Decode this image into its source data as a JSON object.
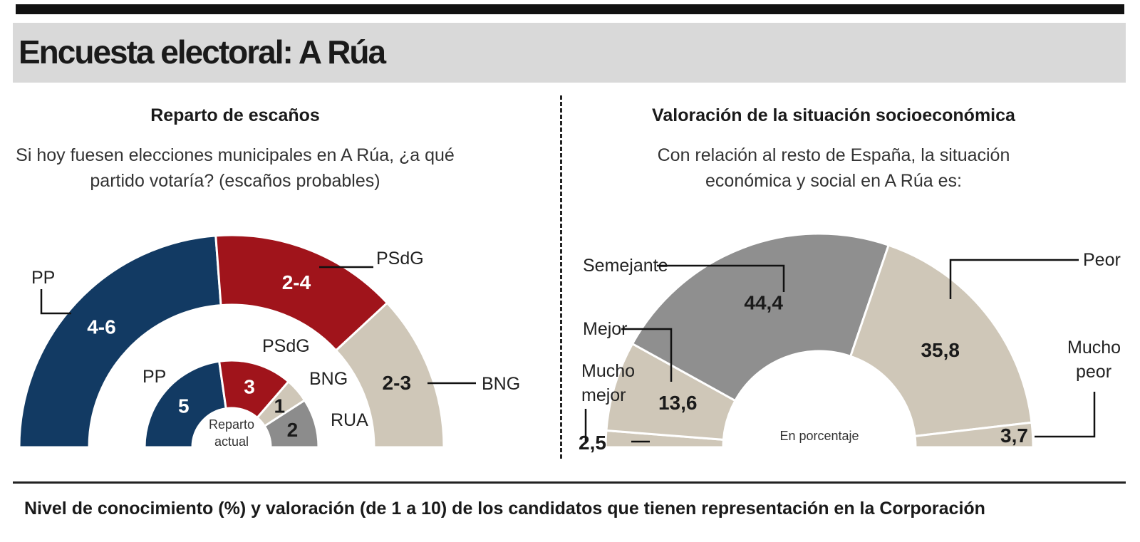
{
  "header": {
    "title": "Encuesta electoral: A Rúa"
  },
  "left_panel": {
    "title": "Reparto de escaños",
    "subtitle_line1": "Si hoy fuesen elecciones municipales en A Rúa, ¿a qué",
    "subtitle_line2": "partido votaría? (escaños probables)",
    "center_label_line1": "Reparto",
    "center_label_line2": "actual"
  },
  "right_panel": {
    "title": "Valoración de la situación socioeconómica",
    "subtitle_line1": "Con relación al resto de España, la situación",
    "subtitle_line2": "económica y social en A Rúa es:",
    "center_label": "En porcentaje"
  },
  "footer": {
    "title": "Nivel de conocimiento (%) y valoración (de 1 a 10) de los candidatos que tienen representación en la Corporación"
  },
  "colors": {
    "PP": "#123a63",
    "PSdG": "#a0141b",
    "BNG": "#cfc7b8",
    "RUA": "#8c8c8c",
    "Semejante": "#8f8f8f",
    "beige": "#cfc7b8"
  },
  "chart_data": [
    {
      "type": "pie",
      "variant": "half-donut",
      "name_hidden": true,
      "series": [
        {
          "name": "escaños probables",
          "categories": [
            "PP",
            "PSdG",
            "BNG"
          ],
          "labels": [
            "4-6",
            "2-4",
            "2-3"
          ],
          "values": [
            5,
            3,
            2.5
          ]
        },
        {
          "name": "Reparto actual",
          "categories": [
            "PP",
            "PSdG",
            "BNG",
            "RUA"
          ],
          "labels": [
            "5",
            "3",
            "1",
            "2"
          ],
          "values": [
            5,
            3,
            1,
            2
          ]
        }
      ]
    },
    {
      "type": "pie",
      "variant": "half-donut",
      "categories": [
        "Mucho mejor",
        "Mejor",
        "Semejante",
        "Peor",
        "Mucho peor"
      ],
      "labels": [
        "2,5",
        "13,6",
        "44,4",
        "35,8",
        "3,7"
      ],
      "values": [
        2.5,
        13.6,
        44.4,
        35.8,
        3.7
      ],
      "unit": "%"
    }
  ]
}
